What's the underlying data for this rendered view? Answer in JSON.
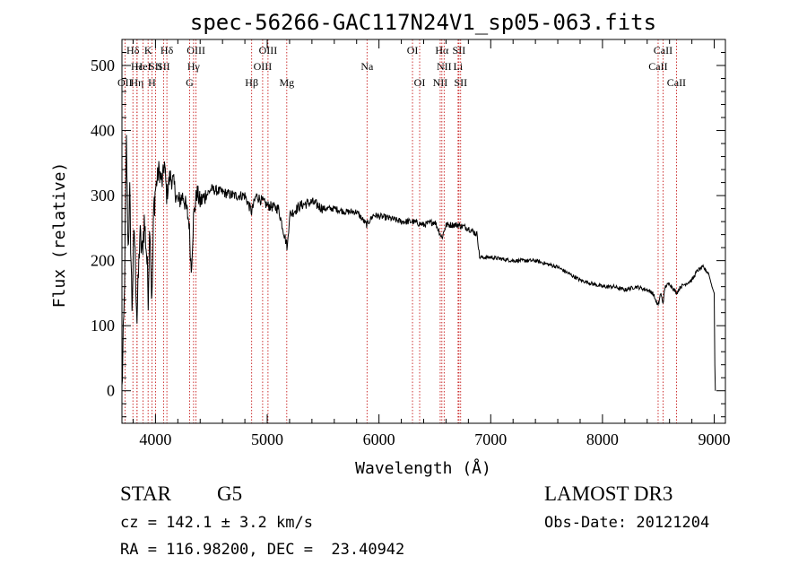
{
  "chart_data": {
    "type": "line",
    "title": "spec-56266-GAC117N24V1_sp05-063.fits",
    "xlabel": "Wavelength (Å)",
    "ylabel": "Flux (relative)",
    "xlim": [
      3700,
      9100
    ],
    "ylim": [
      -50,
      540
    ],
    "xticks": [
      4000,
      5000,
      6000,
      7000,
      8000,
      9000
    ],
    "yticks": [
      0,
      100,
      200,
      300,
      400,
      500
    ],
    "grid": false,
    "colors": {
      "spectrum": "#000000",
      "line_markers": "#c00000"
    },
    "spectrum_anchors": [
      [
        3700,
        0
      ],
      [
        3720,
        130
      ],
      [
        3740,
        380
      ],
      [
        3755,
        220
      ],
      [
        3770,
        300
      ],
      [
        3790,
        130
      ],
      [
        3810,
        250
      ],
      [
        3835,
        110
      ],
      [
        3860,
        240
      ],
      [
        3880,
        210
      ],
      [
        3900,
        260
      ],
      [
        3920,
        215
      ],
      [
        3935,
        150
      ],
      [
        3950,
        265
      ],
      [
        3968,
        130
      ],
      [
        3985,
        280
      ],
      [
        4000,
        310
      ],
      [
        4030,
        340
      ],
      [
        4060,
        320
      ],
      [
        4080,
        350
      ],
      [
        4100,
        300
      ],
      [
        4130,
        330
      ],
      [
        4160,
        320
      ],
      [
        4200,
        290
      ],
      [
        4250,
        300
      ],
      [
        4300,
        260
      ],
      [
        4320,
        185
      ],
      [
        4340,
        265
      ],
      [
        4370,
        305
      ],
      [
        4400,
        290
      ],
      [
        4500,
        310
      ],
      [
        4600,
        305
      ],
      [
        4700,
        300
      ],
      [
        4800,
        300
      ],
      [
        4860,
        275
      ],
      [
        4900,
        300
      ],
      [
        5000,
        285
      ],
      [
        5100,
        280
      ],
      [
        5180,
        220
      ],
      [
        5200,
        270
      ],
      [
        5300,
        285
      ],
      [
        5400,
        290
      ],
      [
        5500,
        280
      ],
      [
        5600,
        280
      ],
      [
        5700,
        275
      ],
      [
        5800,
        275
      ],
      [
        5890,
        255
      ],
      [
        5950,
        270
      ],
      [
        6100,
        265
      ],
      [
        6200,
        260
      ],
      [
        6300,
        260
      ],
      [
        6400,
        255
      ],
      [
        6500,
        260
      ],
      [
        6563,
        235
      ],
      [
        6600,
        255
      ],
      [
        6700,
        255
      ],
      [
        6800,
        250
      ],
      [
        6880,
        240
      ],
      [
        6900,
        205
      ],
      [
        7000,
        205
      ],
      [
        7200,
        200
      ],
      [
        7400,
        200
      ],
      [
        7500,
        195
      ],
      [
        7600,
        190
      ],
      [
        7700,
        180
      ],
      [
        7800,
        170
      ],
      [
        7900,
        165
      ],
      [
        8000,
        160
      ],
      [
        8100,
        160
      ],
      [
        8200,
        155
      ],
      [
        8300,
        160
      ],
      [
        8400,
        155
      ],
      [
        8450,
        150
      ],
      [
        8498,
        130
      ],
      [
        8520,
        150
      ],
      [
        8542,
        135
      ],
      [
        8560,
        160
      ],
      [
        8600,
        165
      ],
      [
        8662,
        150
      ],
      [
        8700,
        160
      ],
      [
        8800,
        170
      ],
      [
        8850,
        185
      ],
      [
        8900,
        190
      ],
      [
        8950,
        180
      ],
      [
        8980,
        160
      ],
      [
        9000,
        150
      ],
      [
        9005,
        40
      ],
      [
        9010,
        0
      ]
    ],
    "spectral_lines": [
      {
        "label": "Hδ",
        "x": 3798,
        "row": 0
      },
      {
        "label": "OII",
        "x": 3727,
        "row": 2
      },
      {
        "label": "Hε",
        "x": 3835,
        "row": 1
      },
      {
        "label": "Hη",
        "x": 3835,
        "row": 2
      },
      {
        "label": "HeI",
        "x": 3889,
        "row": 1
      },
      {
        "label": "K",
        "x": 3934,
        "row": 0
      },
      {
        "label": "H",
        "x": 3968,
        "row": 2
      },
      {
        "label": "SII",
        "x": 4000,
        "row": 1
      },
      {
        "label": "Hδ",
        "x": 4102,
        "row": 0
      },
      {
        "label": "SII",
        "x": 4072,
        "row": 1
      },
      {
        "label": "OIII",
        "x": 4363,
        "row": 0
      },
      {
        "label": "Hγ",
        "x": 4341,
        "row": 1
      },
      {
        "label": "G",
        "x": 4305,
        "row": 2
      },
      {
        "label": "Hβ",
        "x": 4861,
        "row": 2
      },
      {
        "label": "OIII",
        "x": 5007,
        "row": 0
      },
      {
        "label": "OIII",
        "x": 4959,
        "row": 1
      },
      {
        "label": "Mg",
        "x": 5175,
        "row": 2
      },
      {
        "label": "Na",
        "x": 5893,
        "row": 1
      },
      {
        "label": "OI",
        "x": 6300,
        "row": 0
      },
      {
        "label": "OI",
        "x": 6364,
        "row": 2
      },
      {
        "label": "Hα",
        "x": 6563,
        "row": 0
      },
      {
        "label": "SII",
        "x": 6716,
        "row": 0
      },
      {
        "label": "NII",
        "x": 6583,
        "row": 1
      },
      {
        "label": "Li",
        "x": 6708,
        "row": 1
      },
      {
        "label": "NII",
        "x": 6548,
        "row": 2
      },
      {
        "label": "SII",
        "x": 6731,
        "row": 2
      },
      {
        "label": "CaII",
        "x": 8542,
        "row": 0
      },
      {
        "label": "CaII",
        "x": 8498,
        "row": 1
      },
      {
        "label": "CaII",
        "x": 8662,
        "row": 2
      }
    ]
  },
  "info": {
    "object_class": "STAR",
    "subclass": "G5",
    "survey": "LAMOST DR3",
    "redshift": "cz = 142.1 ± 3.2 km/s",
    "obs_date": "Obs-Date: 20121204",
    "coords": "RA = 116.98200, DEC =  23.40942"
  }
}
